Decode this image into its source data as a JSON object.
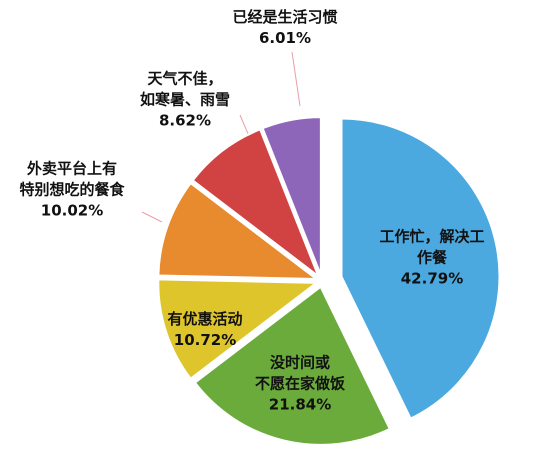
{
  "chart_data": {
    "type": "pie",
    "categories": [
      "工作忙，解决工作餐",
      "没时间或\n不愿在家做饭",
      "有优惠活动",
      "外卖平台上有\n特别想吃的餐食",
      "天气不佳，\n如寒暑、雨雪",
      "已经是生活习惯"
    ],
    "values": [
      42.79,
      21.84,
      10.72,
      10.02,
      8.62,
      6.01
    ],
    "value_labels": [
      "42.79%",
      "21.84%",
      "10.72%",
      "10.02%",
      "8.62%",
      "6.01%"
    ],
    "colors": [
      "#4ba9df",
      "#6aab3b",
      "#dfc52c",
      "#e88b2f",
      "#d04342",
      "#8d66b9"
    ]
  }
}
